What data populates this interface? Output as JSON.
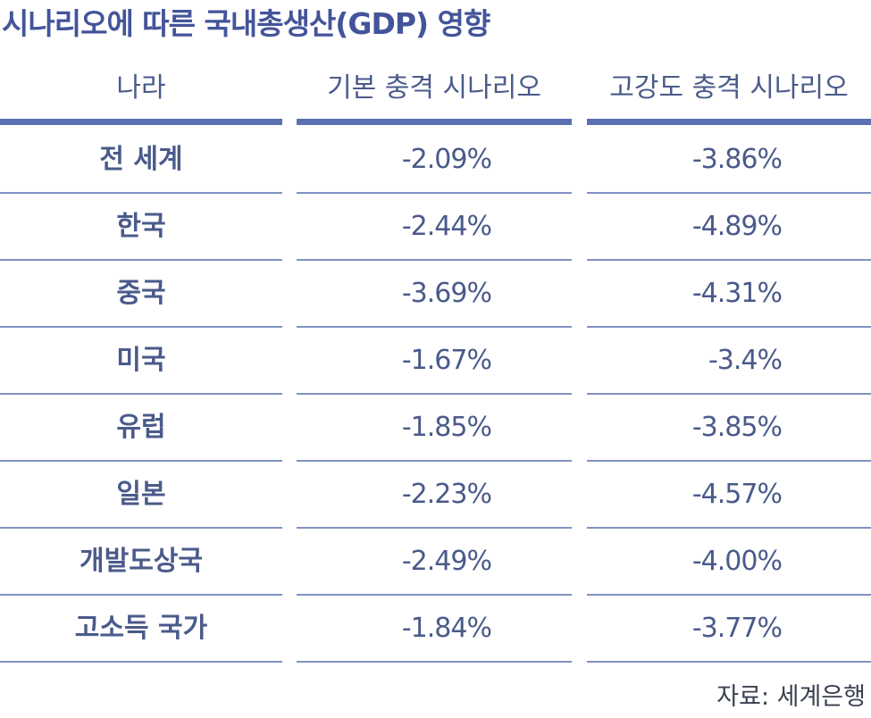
{
  "title": "시나리오에 따른 국내총생산(GDP) 영향",
  "headers": {
    "country": "나라",
    "base": "기본 충격 시나리오",
    "high": "고강도 충격 시나리오"
  },
  "rows": [
    {
      "country": "전 세계",
      "base": "-2.09%",
      "high": "-3.86%"
    },
    {
      "country": "한국",
      "base": "-2.44%",
      "high": "-4.89%"
    },
    {
      "country": "중국",
      "base": "-3.69%",
      "high": "-4.31%"
    },
    {
      "country": "미국",
      "base": "-1.67%",
      "high": "-3.4%"
    },
    {
      "country": "유럽",
      "base": "-1.85%",
      "high": "-3.85%"
    },
    {
      "country": "일본",
      "base": "-2.23%",
      "high": "-4.57%"
    },
    {
      "country": "개발도상국",
      "base": "-2.49%",
      "high": "-4.00%"
    },
    {
      "country": "고소득 국가",
      "base": "-1.84%",
      "high": "-3.77%"
    }
  ],
  "source": "자료: 세계은행",
  "colors": {
    "accent": "#5b70b0",
    "text": "#4a5a8a",
    "divider": "#7f92c2"
  }
}
